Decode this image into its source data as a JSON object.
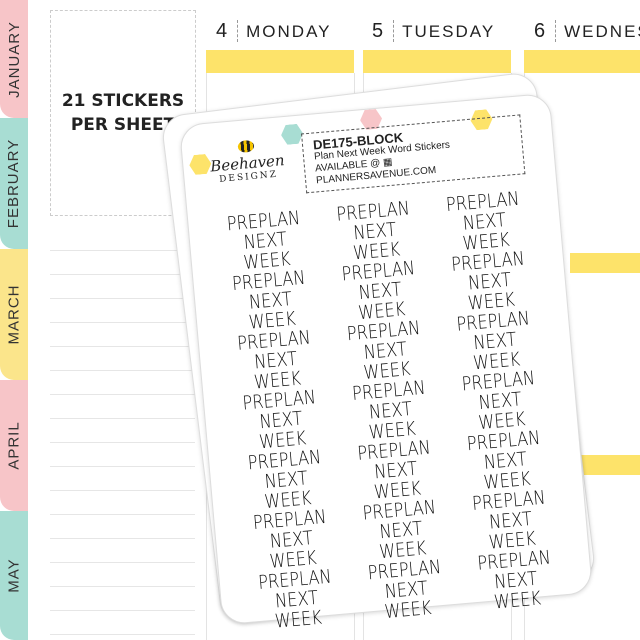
{
  "tabs": [
    {
      "label": "JANUARY",
      "color": "#f7c5c8"
    },
    {
      "label": "FEBRUARY",
      "color": "#a8ddd3"
    },
    {
      "label": "MARCH",
      "color": "#fbe58b"
    },
    {
      "label": "APRIL",
      "color": "#f7c5c8"
    },
    {
      "label": "MAY",
      "color": "#a8ddd3"
    }
  ],
  "info": {
    "line1": "21 STICKERS",
    "line2": "PER SHEET"
  },
  "days": [
    {
      "num": "4",
      "name": "MONDAY"
    },
    {
      "num": "5",
      "name": "TUESDAY"
    },
    {
      "num": "6",
      "name": "WEDNES"
    }
  ],
  "accent": "#fde36a",
  "sheet": {
    "brand": "Beehaven",
    "brand_sub": "DESIGNZ",
    "code": "DE175-BLOCK",
    "title": "Plan Next Week Word Stickers",
    "available": "AVAILABLE @ ▦ PLANNERSAVENUE.COM",
    "sticker_line1": "PREPLAN",
    "sticker_line2": "NEXT WEEK",
    "count": 21
  }
}
